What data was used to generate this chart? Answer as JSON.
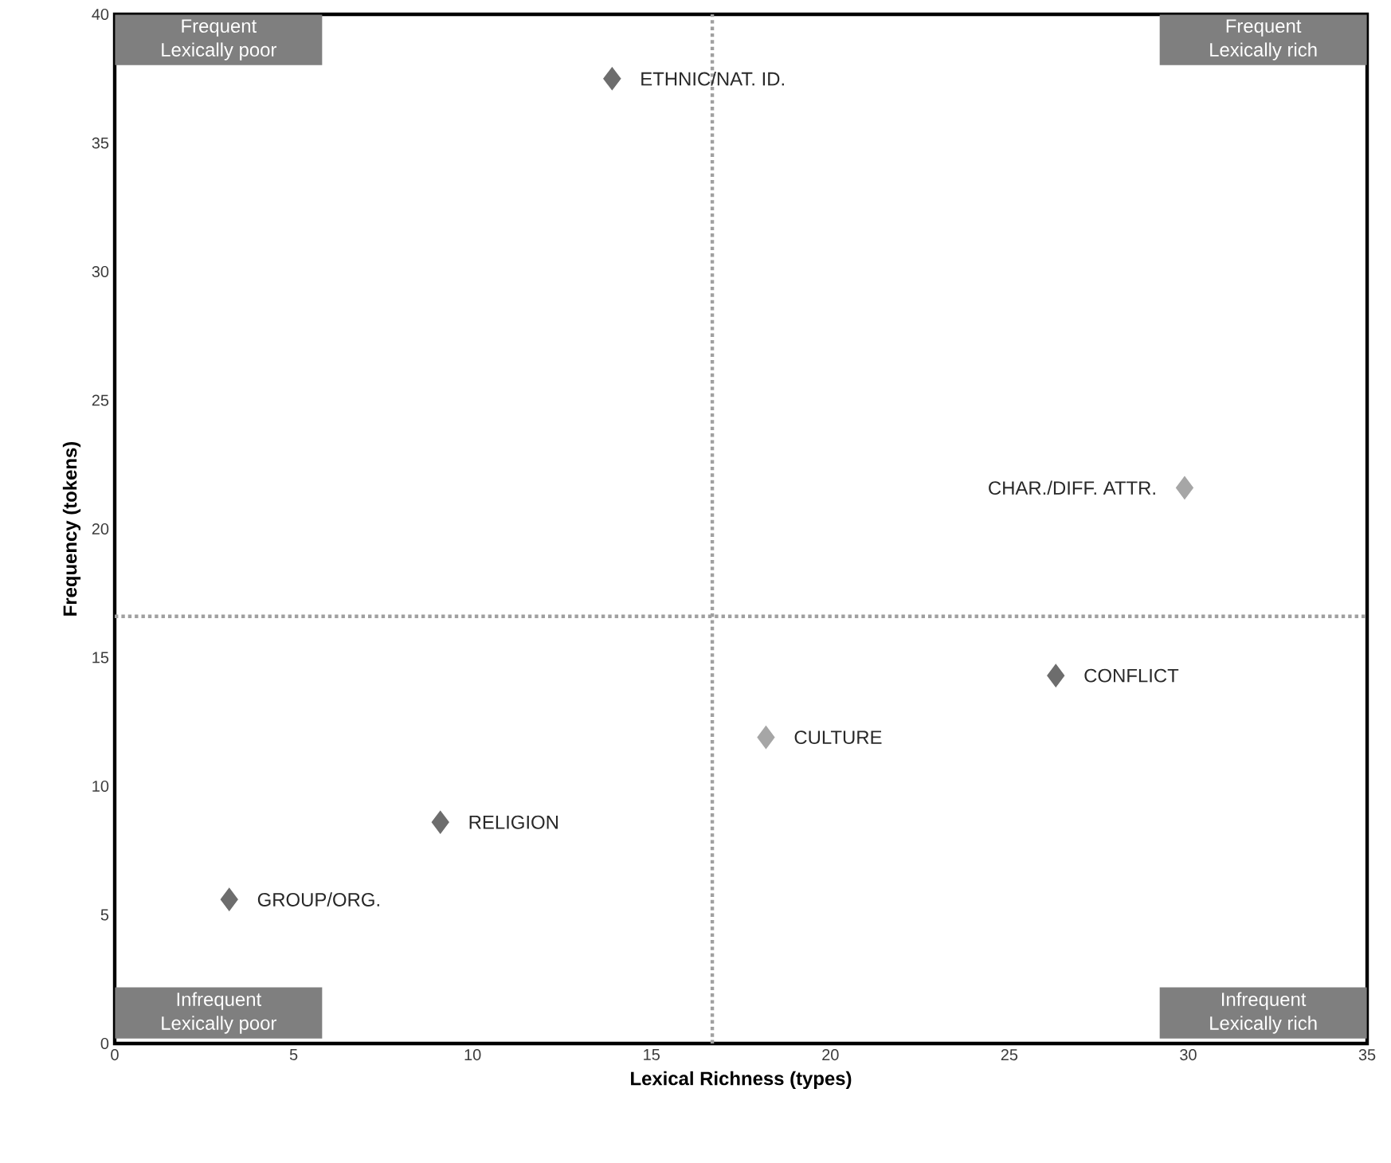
{
  "chart_data": {
    "type": "scatter",
    "xlabel": "Lexical Richness (types)",
    "ylabel": "Frequency (tokens)",
    "xlim": [
      0,
      35
    ],
    "ylim": [
      0,
      40
    ],
    "xticks": [
      0,
      5,
      10,
      15,
      20,
      25,
      30,
      35
    ],
    "yticks": [
      0,
      5,
      10,
      15,
      20,
      25,
      30,
      35,
      40
    ],
    "grid": false,
    "marker": "diamond",
    "series": [
      {
        "name": "ETHNIC/NAT. ID.",
        "color": "#6d6d6d",
        "x": [
          13.9
        ],
        "values": [
          37.5
        ]
      },
      {
        "name": "CHAR./DIFF. ATTR.",
        "color": "#a6a6a6",
        "x": [
          29.9
        ],
        "values": [
          21.6
        ]
      },
      {
        "name": "CONFLICT",
        "color": "#6d6d6d",
        "x": [
          26.3
        ],
        "values": [
          14.3
        ]
      },
      {
        "name": "CULTURE",
        "color": "#a6a6a6",
        "x": [
          18.2
        ],
        "values": [
          11.9
        ]
      },
      {
        "name": "RELIGION",
        "color": "#6d6d6d",
        "x": [
          9.1
        ],
        "values": [
          8.6
        ]
      },
      {
        "name": "GROUP/ORG.",
        "color": "#6d6d6d",
        "x": [
          3.2
        ],
        "values": [
          5.6
        ]
      }
    ],
    "ref_lines": [
      {
        "axis": "x",
        "value": 16.7,
        "color": "#a0a0a0",
        "line_style": "dotted"
      },
      {
        "axis": "y",
        "value": 16.6,
        "color": "#a0a0a0",
        "line_style": "dotted"
      }
    ],
    "annotations": [
      "Frequent Lexically poor",
      "Frequent Lexically rich",
      "Infrequent Lexically poor",
      "Infrequent Lexically rich"
    ]
  }
}
